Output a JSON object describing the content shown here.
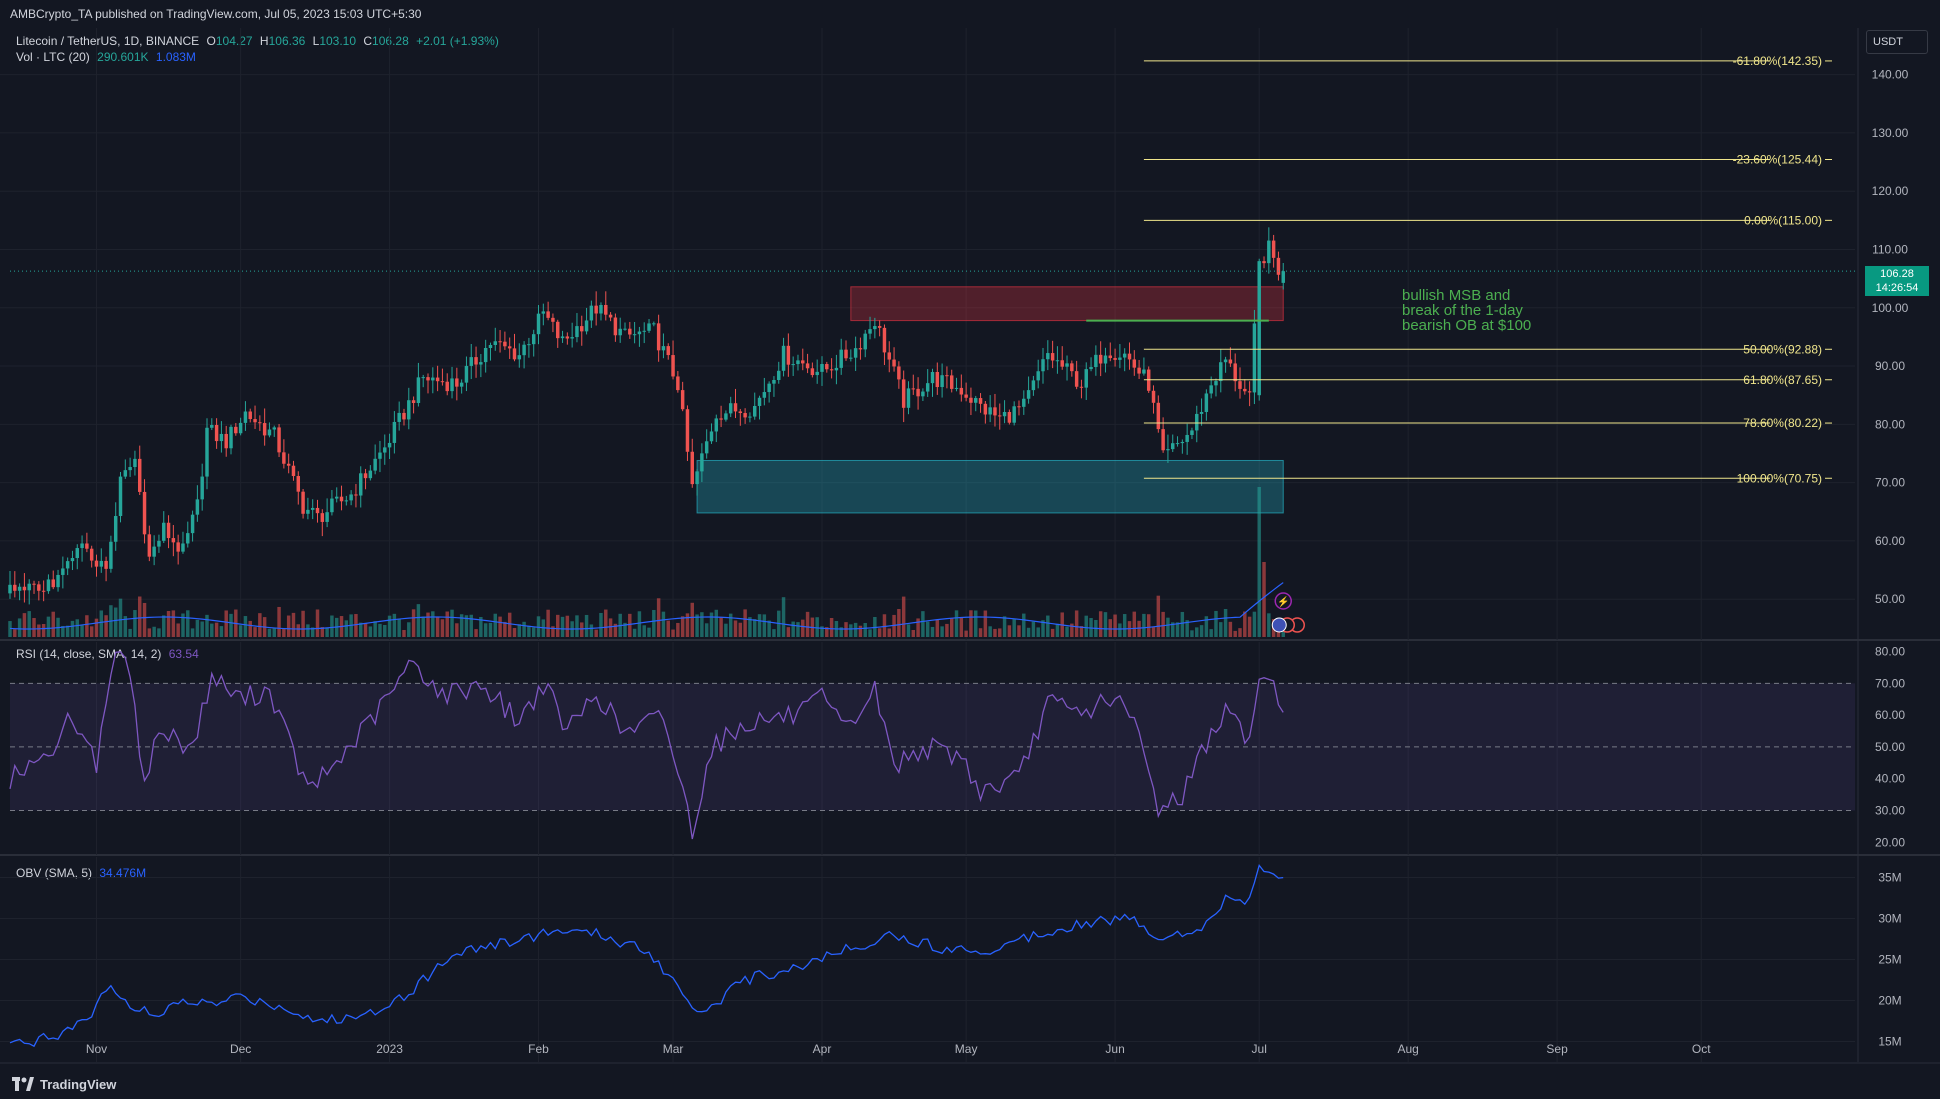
{
  "header": {
    "published_by": "AMBCrypto_TA published on TradingView.com, Jul 05, 2023 15:03 UTC+5:30"
  },
  "symbol": {
    "name": "Litecoin / TetherUS, 1D, BINANCE",
    "o_label": "O",
    "o": "104.27",
    "h_label": "H",
    "h": "106.36",
    "l_label": "L",
    "l": "103.10",
    "c_label": "C",
    "c": "106.28",
    "change": "+2.01 (+1.93%)"
  },
  "volume_legend": {
    "label": "Vol · LTC (20)",
    "value1": "290.601K",
    "value2": "1.083M"
  },
  "rsi_legend": {
    "label": "RSI (14, close, SMA, 14, 2)",
    "value": "63.54"
  },
  "obv_legend": {
    "label": "OBV (SMA, 5)",
    "value": "34.476M"
  },
  "currency": "USDT",
  "last_price": {
    "value": "106.28",
    "countdown": "14:26:54"
  },
  "annotation": [
    "bullish MSB and",
    "break of the 1-day",
    "bearish OB at $100"
  ],
  "footer": {
    "brand": "TradingView"
  },
  "colors": {
    "up": "#26a69a",
    "down": "#ef5350",
    "fib": "#f0e68c",
    "annotation": "#4caf50",
    "rsi": "#7e57c2",
    "obv": "#2962ff",
    "vol_ma": "#2962ff"
  },
  "chart_data": [
    {
      "type": "candlestick",
      "title": "Litecoin / TetherUS, 1D, BINANCE",
      "ylim": [
        43,
        148
      ],
      "price_ticks": [
        "50.00",
        "60.00",
        "70.00",
        "80.00",
        "90.00",
        "100.00",
        "110.00",
        "120.00",
        "130.00",
        "140.00"
      ],
      "x_labels": [
        "Nov",
        "Dec",
        "2023",
        "Feb",
        "Mar",
        "Apr",
        "May",
        "Jun",
        "Jul",
        "Aug",
        "Sep",
        "Oct"
      ],
      "x_label_days": [
        0,
        30,
        61,
        92,
        120,
        151,
        181,
        212,
        242,
        273,
        304,
        334
      ],
      "x_range_days": [
        -18,
        366
      ],
      "bars_start_day": -18,
      "anchors": [
        {
          "d": -18,
          "p": 51
        },
        {
          "d": -8,
          "p": 53
        },
        {
          "d": -3,
          "p": 59
        },
        {
          "d": 2,
          "p": 55
        },
        {
          "d": 5,
          "p": 70
        },
        {
          "d": 8,
          "p": 74
        },
        {
          "d": 11,
          "p": 57
        },
        {
          "d": 14,
          "p": 62
        },
        {
          "d": 18,
          "p": 58
        },
        {
          "d": 21,
          "p": 66
        },
        {
          "d": 23,
          "p": 79
        },
        {
          "d": 27,
          "p": 77
        },
        {
          "d": 31,
          "p": 82
        },
        {
          "d": 37,
          "p": 78
        },
        {
          "d": 43,
          "p": 66
        },
        {
          "d": 46,
          "p": 64
        },
        {
          "d": 53,
          "p": 68
        },
        {
          "d": 60,
          "p": 76
        },
        {
          "d": 68,
          "p": 88
        },
        {
          "d": 75,
          "p": 87
        },
        {
          "d": 82,
          "p": 94
        },
        {
          "d": 88,
          "p": 92
        },
        {
          "d": 93,
          "p": 99
        },
        {
          "d": 97,
          "p": 94
        },
        {
          "d": 104,
          "p": 100
        },
        {
          "d": 110,
          "p": 95
        },
        {
          "d": 116,
          "p": 96
        },
        {
          "d": 121,
          "p": 87
        },
        {
          "d": 124,
          "p": 69
        },
        {
          "d": 129,
          "p": 82
        },
        {
          "d": 137,
          "p": 83
        },
        {
          "d": 143,
          "p": 92
        },
        {
          "d": 151,
          "p": 89
        },
        {
          "d": 158,
          "p": 93
        },
        {
          "d": 162,
          "p": 98
        },
        {
          "d": 168,
          "p": 84
        },
        {
          "d": 174,
          "p": 88
        },
        {
          "d": 180,
          "p": 86
        },
        {
          "d": 184,
          "p": 83
        },
        {
          "d": 188,
          "p": 81
        },
        {
          "d": 193,
          "p": 83
        },
        {
          "d": 198,
          "p": 92
        },
        {
          "d": 205,
          "p": 87
        },
        {
          "d": 210,
          "p": 93
        },
        {
          "d": 214,
          "p": 92
        },
        {
          "d": 219,
          "p": 87
        },
        {
          "d": 222,
          "p": 74
        },
        {
          "d": 228,
          "p": 79
        },
        {
          "d": 232,
          "p": 87
        },
        {
          "d": 235,
          "p": 91
        },
        {
          "d": 240,
          "p": 84
        },
        {
          "d": 242,
          "p": 108
        },
        {
          "d": 244,
          "p": 110
        },
        {
          "d": 247,
          "p": 105
        }
      ],
      "volume_baseline": 290601,
      "volume_ma": 1083000
    },
    {
      "type": "line",
      "title": "RSI (14, close, SMA, 14, 2)",
      "ylim": [
        16,
        83
      ],
      "y_ticks": [
        "20.00",
        "30.00",
        "40.00",
        "50.00",
        "60.00",
        "70.00",
        "80.00"
      ],
      "levels": [
        30,
        50,
        70
      ],
      "anchors": [
        {
          "d": -18,
          "v": 40
        },
        {
          "d": -10,
          "v": 48
        },
        {
          "d": -5,
          "v": 60
        },
        {
          "d": 0,
          "v": 45
        },
        {
          "d": 3,
          "v": 75
        },
        {
          "d": 6,
          "v": 80
        },
        {
          "d": 10,
          "v": 40
        },
        {
          "d": 13,
          "v": 55
        },
        {
          "d": 20,
          "v": 50
        },
        {
          "d": 24,
          "v": 72
        },
        {
          "d": 30,
          "v": 65
        },
        {
          "d": 36,
          "v": 68
        },
        {
          "d": 44,
          "v": 36
        },
        {
          "d": 50,
          "v": 45
        },
        {
          "d": 58,
          "v": 60
        },
        {
          "d": 66,
          "v": 77
        },
        {
          "d": 72,
          "v": 66
        },
        {
          "d": 80,
          "v": 70
        },
        {
          "d": 88,
          "v": 58
        },
        {
          "d": 93,
          "v": 70
        },
        {
          "d": 98,
          "v": 55
        },
        {
          "d": 104,
          "v": 67
        },
        {
          "d": 110,
          "v": 54
        },
        {
          "d": 118,
          "v": 60
        },
        {
          "d": 124,
          "v": 24
        },
        {
          "d": 128,
          "v": 50
        },
        {
          "d": 136,
          "v": 58
        },
        {
          "d": 146,
          "v": 60
        },
        {
          "d": 151,
          "v": 65
        },
        {
          "d": 156,
          "v": 55
        },
        {
          "d": 162,
          "v": 68
        },
        {
          "d": 166,
          "v": 44
        },
        {
          "d": 172,
          "v": 50
        },
        {
          "d": 180,
          "v": 47
        },
        {
          "d": 184,
          "v": 36
        },
        {
          "d": 192,
          "v": 40
        },
        {
          "d": 198,
          "v": 64
        },
        {
          "d": 205,
          "v": 60
        },
        {
          "d": 211,
          "v": 66
        },
        {
          "d": 216,
          "v": 58
        },
        {
          "d": 221,
          "v": 31
        },
        {
          "d": 226,
          "v": 35
        },
        {
          "d": 232,
          "v": 55
        },
        {
          "d": 236,
          "v": 62
        },
        {
          "d": 240,
          "v": 50
        },
        {
          "d": 242,
          "v": 74
        },
        {
          "d": 244,
          "v": 71
        },
        {
          "d": 247,
          "v": 64
        }
      ]
    },
    {
      "type": "line",
      "title": "OBV (SMA, 5)",
      "ylim": [
        12.5,
        37.5
      ],
      "y_ticks": [
        "15M",
        "20M",
        "25M",
        "30M",
        "35M"
      ],
      "anchors": [
        {
          "d": -18,
          "v": 14.5
        },
        {
          "d": -10,
          "v": 15.5
        },
        {
          "d": -3,
          "v": 17
        },
        {
          "d": 3,
          "v": 22
        },
        {
          "d": 8,
          "v": 19
        },
        {
          "d": 13,
          "v": 18
        },
        {
          "d": 18,
          "v": 20
        },
        {
          "d": 24,
          "v": 19.5
        },
        {
          "d": 30,
          "v": 20.5
        },
        {
          "d": 40,
          "v": 19
        },
        {
          "d": 46,
          "v": 17.5
        },
        {
          "d": 55,
          "v": 18
        },
        {
          "d": 65,
          "v": 21
        },
        {
          "d": 75,
          "v": 26
        },
        {
          "d": 85,
          "v": 27
        },
        {
          "d": 95,
          "v": 28.5
        },
        {
          "d": 105,
          "v": 28
        },
        {
          "d": 115,
          "v": 26
        },
        {
          "d": 122,
          "v": 21
        },
        {
          "d": 126,
          "v": 18.5
        },
        {
          "d": 135,
          "v": 22.5
        },
        {
          "d": 145,
          "v": 24
        },
        {
          "d": 155,
          "v": 26
        },
        {
          "d": 165,
          "v": 28
        },
        {
          "d": 175,
          "v": 26.5
        },
        {
          "d": 185,
          "v": 26
        },
        {
          "d": 195,
          "v": 28
        },
        {
          "d": 205,
          "v": 29.5
        },
        {
          "d": 215,
          "v": 30
        },
        {
          "d": 222,
          "v": 27.5
        },
        {
          "d": 230,
          "v": 29
        },
        {
          "d": 236,
          "v": 33
        },
        {
          "d": 240,
          "v": 32
        },
        {
          "d": 242,
          "v": 36.5
        },
        {
          "d": 247,
          "v": 34.5
        }
      ]
    }
  ],
  "fib_levels": [
    {
      "label": "-61.80%(142.35)",
      "price": 142.35
    },
    {
      "label": "-23.60%(125.44)",
      "price": 125.44
    },
    {
      "label": "0.00%(115.00)",
      "price": 115.0
    },
    {
      "label": "50.00%(92.88)",
      "price": 92.88
    },
    {
      "label": "61.80%(87.65)",
      "price": 87.65
    },
    {
      "label": "78.60%(80.22)",
      "price": 80.22
    },
    {
      "label": "100.00%(70.75)",
      "price": 70.75
    }
  ],
  "zones": [
    {
      "name": "bearish-order-block",
      "from_day": 157,
      "to_day": 247,
      "low": 97.8,
      "high": 103.6,
      "color": "#f23645"
    },
    {
      "name": "bullish-demand-zone",
      "from_day": 125,
      "to_day": 247,
      "low": 64.8,
      "high": 73.8,
      "color": "#26c6da"
    }
  ],
  "msb_line": {
    "from_day": 206,
    "to_day": 244,
    "price": 97.8
  },
  "fib_start_day": 218
}
